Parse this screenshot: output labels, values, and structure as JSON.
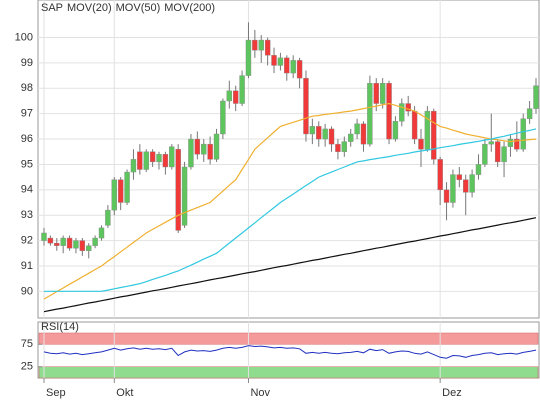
{
  "chart_data": [
    {
      "type": "candlestick",
      "categories": [
        "Sep",
        null,
        null,
        null,
        null,
        null,
        null,
        null,
        null,
        null,
        null,
        "Okt",
        null,
        null,
        null,
        null,
        null,
        null,
        null,
        null,
        null,
        null,
        null,
        null,
        null,
        null,
        null,
        null,
        null,
        null,
        null,
        null,
        "Nov",
        null,
        null,
        null,
        null,
        null,
        null,
        null,
        null,
        null,
        null,
        null,
        null,
        null,
        null,
        null,
        null,
        null,
        null,
        null,
        null,
        null,
        null,
        null,
        null,
        null,
        null,
        null,
        null,
        null,
        "Dez",
        null,
        null,
        null,
        null,
        null,
        null,
        null,
        null,
        null,
        null,
        null,
        null,
        null,
        null,
        null
      ],
      "ylim": [
        88.95,
        101.4
      ],
      "yticks": [
        90,
        91,
        92,
        93,
        94,
        95,
        96,
        97,
        98,
        99,
        100
      ],
      "grid": true,
      "up_color": "#5ec45e",
      "down_color": "#f03a3a",
      "series": [
        {
          "name": "SAP",
          "color": "#f07030",
          "ohlc": [
            [
              92.0,
              92.5,
              91.8,
              92.3
            ],
            [
              92.1,
              92.2,
              91.8,
              91.9
            ],
            [
              91.9,
              92.1,
              91.6,
              91.8
            ],
            [
              91.8,
              92.2,
              91.5,
              92.1
            ],
            [
              92.1,
              92.2,
              91.6,
              91.7
            ],
            [
              91.7,
              92.1,
              91.5,
              92.0
            ],
            [
              92.0,
              92.1,
              91.4,
              91.6
            ],
            [
              91.6,
              91.9,
              91.3,
              91.8
            ],
            [
              91.8,
              92.2,
              91.7,
              92.1
            ],
            [
              92.1,
              92.6,
              92.0,
              92.5
            ],
            [
              92.6,
              93.4,
              92.5,
              93.2
            ],
            [
              93.2,
              94.5,
              93.0,
              94.4
            ],
            [
              94.4,
              94.5,
              93.2,
              93.5
            ],
            [
              93.5,
              94.8,
              93.4,
              94.7
            ],
            [
              94.7,
              95.6,
              94.4,
              95.2
            ],
            [
              95.5,
              95.8,
              94.6,
              94.8
            ],
            [
              94.8,
              95.6,
              94.7,
              95.5
            ],
            [
              95.5,
              95.6,
              94.9,
              95.1
            ],
            [
              95.1,
              95.5,
              94.8,
              95.4
            ],
            [
              95.4,
              95.5,
              94.6,
              94.9
            ],
            [
              94.9,
              95.8,
              94.8,
              95.7
            ],
            [
              95.6,
              95.8,
              92.3,
              92.4
            ],
            [
              92.6,
              95.1,
              92.5,
              94.9
            ],
            [
              94.9,
              96.2,
              94.8,
              96.0
            ],
            [
              96.0,
              96.3,
              95.2,
              95.4
            ],
            [
              95.4,
              96.0,
              95.1,
              95.8
            ],
            [
              95.8,
              96.1,
              95.0,
              95.2
            ],
            [
              95.2,
              96.4,
              95.1,
              96.2
            ],
            [
              96.2,
              97.6,
              96.0,
              97.5
            ],
            [
              97.5,
              98.3,
              97.2,
              97.9
            ],
            [
              97.9,
              98.1,
              97.1,
              97.4
            ],
            [
              97.4,
              98.7,
              97.3,
              98.5
            ],
            [
              98.5,
              100.6,
              98.4,
              99.9
            ],
            [
              99.9,
              100.3,
              99.2,
              99.5
            ],
            [
              99.5,
              100.1,
              99.0,
              99.9
            ],
            [
              99.9,
              100.0,
              98.9,
              99.3
            ],
            [
              99.3,
              99.6,
              98.6,
              98.9
            ],
            [
              98.9,
              99.4,
              98.7,
              99.2
            ],
            [
              99.2,
              99.3,
              98.3,
              98.6
            ],
            [
              98.6,
              99.3,
              98.4,
              99.1
            ],
            [
              99.1,
              99.2,
              98.0,
              98.4
            ],
            [
              98.4,
              98.7,
              95.9,
              96.2
            ],
            [
              96.2,
              96.8,
              95.8,
              96.5
            ],
            [
              96.5,
              96.7,
              95.7,
              96.0
            ],
            [
              96.0,
              96.6,
              95.7,
              96.4
            ],
            [
              96.4,
              96.5,
              95.5,
              95.8
            ],
            [
              95.8,
              96.0,
              95.2,
              95.5
            ],
            [
              95.5,
              96.1,
              95.3,
              95.9
            ],
            [
              95.9,
              96.4,
              95.7,
              96.2
            ],
            [
              96.2,
              96.8,
              96.0,
              96.6
            ],
            [
              96.6,
              96.7,
              95.5,
              95.8
            ],
            [
              95.8,
              98.5,
              95.7,
              98.2
            ],
            [
              98.2,
              98.4,
              97.1,
              97.4
            ],
            [
              97.4,
              98.4,
              97.2,
              98.2
            ],
            [
              98.2,
              98.3,
              95.8,
              96.0
            ],
            [
              96.0,
              96.9,
              95.9,
              96.7
            ],
            [
              96.7,
              97.6,
              96.5,
              97.4
            ],
            [
              97.4,
              97.7,
              96.9,
              97.1
            ],
            [
              97.1,
              97.3,
              95.8,
              96.0
            ],
            [
              96.0,
              96.4,
              94.9,
              95.6
            ],
            [
              95.6,
              97.3,
              95.5,
              97.1
            ],
            [
              97.1,
              97.2,
              95.0,
              95.2
            ],
            [
              95.2,
              95.3,
              93.4,
              94.0
            ],
            [
              94.0,
              94.3,
              92.8,
              93.5
            ],
            [
              93.5,
              94.8,
              93.3,
              94.6
            ],
            [
              94.6,
              94.9,
              94.1,
              94.4
            ],
            [
              94.4,
              94.6,
              93.0,
              93.9
            ],
            [
              93.9,
              94.8,
              93.7,
              94.6
            ],
            [
              94.6,
              95.4,
              94.4,
              95.0
            ],
            [
              95.0,
              96.0,
              94.9,
              95.8
            ],
            [
              95.8,
              97.0,
              95.5,
              95.9
            ],
            [
              95.9,
              96.0,
              94.9,
              95.1
            ],
            [
              95.1,
              95.9,
              94.5,
              95.7
            ],
            [
              95.7,
              96.2,
              95.3,
              96.0
            ],
            [
              96.0,
              96.7,
              95.5,
              95.6
            ],
            [
              95.6,
              97.0,
              95.5,
              96.8
            ],
            [
              96.8,
              97.5,
              96.6,
              97.2
            ],
            [
              97.2,
              98.4,
              97.0,
              98.1
            ]
          ]
        },
        {
          "name": "MOV(20)",
          "color": "#f0b030",
          "values": [
            89.7,
            89.84,
            89.99,
            90.13,
            90.28,
            90.42,
            90.57,
            90.71,
            90.86,
            91.0,
            91.19,
            91.37,
            91.56,
            91.74,
            91.93,
            92.11,
            92.3,
            92.44,
            92.58,
            92.72,
            92.86,
            93.0,
            93.1,
            93.2,
            93.3,
            93.4,
            93.5,
            93.73,
            93.95,
            94.18,
            94.4,
            94.8,
            95.2,
            95.6,
            95.83,
            96.05,
            96.28,
            96.5,
            96.58,
            96.66,
            96.74,
            96.82,
            96.9,
            96.93,
            96.97,
            97.0,
            97.03,
            97.07,
            97.1,
            97.15,
            97.2,
            97.25,
            97.3,
            97.35,
            97.4,
            97.33,
            97.25,
            97.18,
            97.1,
            96.95,
            96.8,
            96.65,
            96.5,
            96.43,
            96.35,
            96.28,
            96.2,
            96.15,
            96.1,
            96.05,
            96.0,
            95.97,
            95.93,
            95.9,
            95.93,
            95.95,
            95.98,
            96.0
          ]
        },
        {
          "name": "MOV(50)",
          "color": "#30c8e0",
          "values": [
            90.0,
            90.0,
            90.0,
            90.0,
            90.0,
            90.0,
            90.0,
            90.0,
            90.0,
            90.0,
            90.05,
            90.1,
            90.15,
            90.2,
            90.25,
            90.3,
            90.38,
            90.47,
            90.55,
            90.63,
            90.72,
            90.8,
            90.92,
            91.03,
            91.15,
            91.27,
            91.38,
            91.5,
            91.7,
            91.9,
            92.1,
            92.3,
            92.5,
            92.7,
            92.9,
            93.1,
            93.3,
            93.5,
            93.67,
            93.83,
            94.0,
            94.17,
            94.33,
            94.5,
            94.6,
            94.7,
            94.8,
            94.9,
            95.0,
            95.1,
            95.14,
            95.19,
            95.23,
            95.27,
            95.31,
            95.36,
            95.4,
            95.44,
            95.49,
            95.53,
            95.57,
            95.61,
            95.66,
            95.7,
            95.74,
            95.79,
            95.83,
            95.87,
            95.91,
            95.96,
            96.0,
            96.06,
            96.11,
            96.17,
            96.23,
            96.29,
            96.34,
            96.4
          ]
        },
        {
          "name": "MOV(200)",
          "color": "#111111",
          "values": [
            89.2,
            89.25,
            89.3,
            89.34,
            89.39,
            89.44,
            89.49,
            89.54,
            89.58,
            89.63,
            89.68,
            89.73,
            89.78,
            89.82,
            89.87,
            89.92,
            89.97,
            90.02,
            90.06,
            90.11,
            90.16,
            90.21,
            90.26,
            90.3,
            90.35,
            90.4,
            90.45,
            90.5,
            90.54,
            90.59,
            90.64,
            90.69,
            90.74,
            90.78,
            90.83,
            90.88,
            90.93,
            90.98,
            91.02,
            91.07,
            91.12,
            91.17,
            91.22,
            91.26,
            91.31,
            91.36,
            91.41,
            91.46,
            91.5,
            91.55,
            91.6,
            91.65,
            91.7,
            91.74,
            91.79,
            91.84,
            91.89,
            91.94,
            91.98,
            92.03,
            92.08,
            92.13,
            92.18,
            92.22,
            92.27,
            92.32,
            92.37,
            92.42,
            92.46,
            92.51,
            92.56,
            92.61,
            92.66,
            92.7,
            92.75,
            92.8,
            92.85,
            92.9
          ]
        }
      ]
    },
    {
      "type": "line",
      "title": "RSI(14)",
      "ylim": [
        0,
        100
      ],
      "yticks": [
        25,
        75
      ],
      "zones": [
        {
          "from": 75,
          "to": 100,
          "color": "#f59a9a"
        },
        {
          "from": 0,
          "to": 25,
          "color": "#8fdc8f"
        }
      ],
      "series": [
        {
          "color": "#2030c0",
          "values": [
            58,
            55,
            54,
            56,
            53,
            55,
            52,
            54,
            56,
            58,
            62,
            66,
            62,
            65,
            67,
            64,
            66,
            64,
            65,
            63,
            66,
            50,
            58,
            62,
            60,
            61,
            59,
            62,
            66,
            68,
            66,
            68,
            72,
            70,
            71,
            69,
            67,
            68,
            66,
            67,
            65,
            55,
            57,
            55,
            57,
            55,
            54,
            56,
            57,
            59,
            56,
            64,
            61,
            63,
            55,
            58,
            60,
            59,
            55,
            53,
            58,
            52,
            46,
            44,
            50,
            49,
            46,
            50,
            52,
            55,
            56,
            52,
            54,
            55,
            53,
            57,
            59,
            62
          ]
        }
      ]
    }
  ]
}
